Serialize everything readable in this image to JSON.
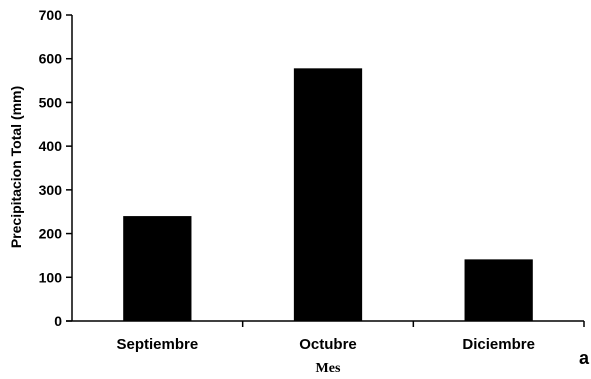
{
  "chart_data": {
    "type": "bar",
    "categories": [
      "Septiembre",
      "Octubre",
      "Diciembre"
    ],
    "values": [
      240,
      578,
      141
    ],
    "title": "",
    "xlabel": "Mes",
    "ylabel": "Precipitacion Total (mm)",
    "ylim": [
      0,
      700
    ],
    "yticks": [
      0,
      100,
      200,
      300,
      400,
      500,
      600,
      700
    ],
    "grid": false,
    "legend": "none",
    "bar_color": "#000000",
    "panel_label": "a"
  }
}
